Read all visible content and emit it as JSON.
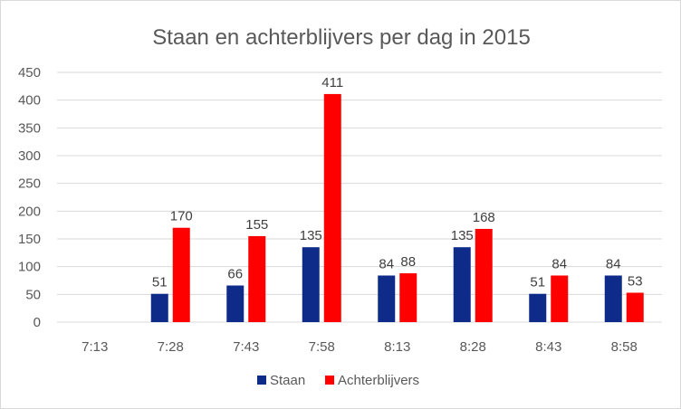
{
  "chart_data": {
    "type": "bar",
    "title": "Staan en achterblijvers per dag in 2015",
    "xlabel": "",
    "ylabel": "",
    "categories": [
      "7:13",
      "7:28",
      "7:43",
      "7:58",
      "8:13",
      "8:28",
      "8:43",
      "8:58"
    ],
    "series": [
      {
        "name": "Staan",
        "color": "#0F2B8A",
        "values": [
          null,
          51,
          66,
          135,
          84,
          135,
          51,
          84
        ]
      },
      {
        "name": "Achterblijvers",
        "color": "#FF0000",
        "values": [
          null,
          170,
          155,
          411,
          88,
          168,
          84,
          53
        ]
      }
    ],
    "ylim": [
      0,
      450
    ],
    "yticks": [
      0,
      50,
      100,
      150,
      200,
      250,
      300,
      350,
      400,
      450
    ],
    "grid": true,
    "data_labels": true,
    "legend": "bottom"
  }
}
